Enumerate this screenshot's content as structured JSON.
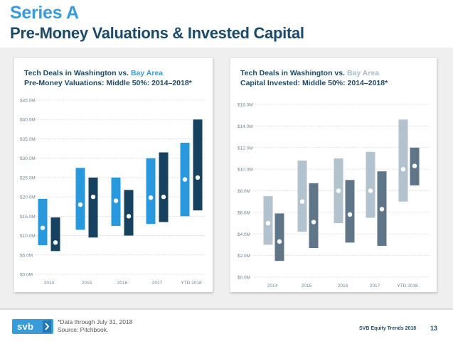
{
  "header": {
    "title": "Series A",
    "subtitle": "Pre-Money Valuations & Invested Capital"
  },
  "colors": {
    "title": "#3a9bd9",
    "subtitle": "#1b4a6b",
    "left_washington": "#16415f",
    "left_bay_area": "#2a98dc",
    "right_washington": "#5f7688",
    "right_bay_area": "#b3c3ce",
    "axis_text": "#6f8794",
    "gridline": "#d5d5d5"
  },
  "chart_data": [
    {
      "type": "range-bar",
      "title_prefix": "Tech Deals in Washington vs. ",
      "title_highlight": "Bay Area",
      "subtitle": "Pre-Money Valuations: Middle 50%: 2014–2018*",
      "xlabel": "",
      "ylabel": "",
      "categories": [
        "2014",
        "2015",
        "2016",
        "2017",
        "YTD 2018"
      ],
      "ylim": [
        0,
        45
      ],
      "yticks": [
        0,
        5,
        10,
        15,
        20,
        25,
        30,
        35,
        40,
        45
      ],
      "ytick_labels": [
        "$0.0M",
        "$5.0M",
        "$10.0M",
        "$15.0M",
        "$20.0M",
        "$25.0M",
        "$30.0M",
        "$35.0M",
        "$40.0M",
        "$45.0M"
      ],
      "grid": "horizontal",
      "series": [
        {
          "name": "Bay Area",
          "color": "#2a98dc",
          "low": [
            7.5,
            11.5,
            12.5,
            13,
            15
          ],
          "high": [
            19.5,
            27.5,
            25,
            30,
            34
          ],
          "median": [
            12,
            18,
            19,
            19.8,
            24.5
          ]
        },
        {
          "name": "Washington",
          "color": "#16415f",
          "low": [
            6,
            9.5,
            10,
            13.5,
            16.5
          ],
          "high": [
            14.7,
            25,
            21.8,
            31.5,
            40
          ],
          "median": [
            8.2,
            20,
            15,
            20,
            25
          ]
        }
      ]
    },
    {
      "type": "range-bar",
      "title_prefix": "Tech Deals in Washington vs. ",
      "title_highlight": "Bay Area",
      "subtitle": "Capital Invested: Middle 50%: 2014–2018*",
      "xlabel": "",
      "ylabel": "",
      "categories": [
        "2014",
        "2015",
        "2016",
        "2017",
        "YTD 2018"
      ],
      "ylim": [
        0,
        16
      ],
      "yticks": [
        0,
        2,
        4,
        6,
        8,
        10,
        12,
        14,
        16
      ],
      "ytick_labels": [
        "$0.0M",
        "$2.0M",
        "$4.0M",
        "$6.0M",
        "$8.0M",
        "$10.0M",
        "$12.0M",
        "$14.0M",
        "$16.0M"
      ],
      "grid": "horizontal",
      "series": [
        {
          "name": "Bay Area",
          "color": "#b3c3ce",
          "low": [
            3,
            4.2,
            5,
            5.5,
            7
          ],
          "high": [
            7.5,
            10.8,
            11,
            11.6,
            14.6
          ],
          "median": [
            5,
            7,
            8,
            8,
            10
          ]
        },
        {
          "name": "Washington",
          "color": "#5f7688",
          "low": [
            1.5,
            2.7,
            3.2,
            2.9,
            8.5
          ],
          "high": [
            5.9,
            8.7,
            9,
            9.8,
            12
          ],
          "median": [
            3.3,
            5.1,
            5.8,
            6.3,
            10.3
          ]
        }
      ]
    }
  ],
  "footer": {
    "logo_text": "svb",
    "note_line1": "*Data through July 31, 2018",
    "note_line2": "Source: Pitchbook.",
    "doc_name": "SVB Equity Trends 2018",
    "page_number": "13"
  }
}
